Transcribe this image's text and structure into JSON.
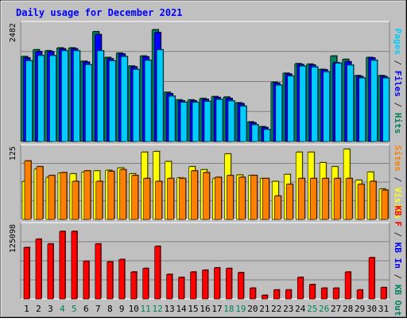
{
  "chart_data": [
    {
      "type": "bar",
      "title": "Daily usage for December 2021",
      "panel": "top",
      "ylabel_parts": [
        {
          "text": "Pages",
          "color": "#00ccff"
        },
        {
          "text": " / ",
          "color": "#333333"
        },
        {
          "text": "Files",
          "color": "#0000ff"
        },
        {
          "text": " / ",
          "color": "#333333"
        },
        {
          "text": "Hits",
          "color": "#00805c"
        }
      ],
      "ymax_label": "2482",
      "ylim": [
        0,
        2482
      ],
      "categories": [
        "1",
        "2",
        "3",
        "4",
        "5",
        "6",
        "7",
        "8",
        "9",
        "10",
        "11",
        "12",
        "13",
        "14",
        "15",
        "16",
        "17",
        "18",
        "19",
        "20",
        "21",
        "22",
        "23",
        "24",
        "25",
        "26",
        "27",
        "28",
        "29",
        "30",
        "31"
      ],
      "weekend_days": [
        "4",
        "5",
        "11",
        "12",
        "18",
        "19",
        "25",
        "26"
      ],
      "series": [
        {
          "name": "Hits",
          "color": "#00805c",
          "values": [
            1780,
            1920,
            1900,
            1960,
            1960,
            1680,
            2300,
            1760,
            1850,
            1580,
            1790,
            2340,
            1030,
            870,
            870,
            900,
            940,
            930,
            810,
            410,
            310,
            1240,
            1430,
            1630,
            1620,
            1510,
            1790,
            1720,
            1380,
            1760,
            1380
          ]
        },
        {
          "name": "Files",
          "color": "#0000ff",
          "values": [
            1750,
            1880,
            1880,
            1940,
            1940,
            1660,
            2240,
            1730,
            1830,
            1560,
            1770,
            2280,
            1000,
            850,
            850,
            880,
            920,
            900,
            790,
            390,
            290,
            1220,
            1410,
            1610,
            1600,
            1500,
            1650,
            1670,
            1360,
            1750,
            1360
          ]
        },
        {
          "name": "Pages",
          "color": "#00ccff",
          "values": [
            1690,
            1800,
            1800,
            1900,
            1900,
            1610,
            1900,
            1690,
            1780,
            1510,
            1700,
            1920,
            950,
            820,
            820,
            840,
            880,
            850,
            740,
            350,
            250,
            1180,
            1370,
            1580,
            1560,
            1460,
            1640,
            1600,
            1330,
            1700,
            1330
          ]
        }
      ]
    },
    {
      "type": "bar",
      "panel": "middle",
      "ylabel_parts": [
        {
          "text": "Sites",
          "color": "#ff8000"
        },
        {
          "text": " / ",
          "color": "#333333"
        },
        {
          "text": "Visits",
          "color": "#ffff00"
        }
      ],
      "ymax_label": "125",
      "ylim": [
        0,
        125
      ],
      "series": [
        {
          "name": "Visits",
          "color": "#ffff00",
          "values": [
            65,
            86,
            72,
            79,
            78,
            81,
            83,
            84,
            88,
            78,
            115,
            116,
            99,
            71,
            90,
            85,
            70,
            112,
            76,
            75,
            70,
            65,
            77,
            115,
            115,
            97,
            90,
            120,
            67,
            81,
            52
          ]
        },
        {
          "name": "Sites",
          "color": "#ff8000",
          "values": [
            100,
            90,
            75,
            80,
            65,
            83,
            65,
            82,
            85,
            75,
            70,
            65,
            70,
            70,
            83,
            80,
            72,
            75,
            72,
            75,
            70,
            40,
            60,
            70,
            70,
            70,
            70,
            70,
            60,
            65,
            50
          ]
        }
      ]
    },
    {
      "type": "bar",
      "panel": "bottom",
      "ylabel_parts": [
        {
          "text": "KB F",
          "color": "#ff0000"
        },
        {
          "text": " / ",
          "color": "#333333"
        },
        {
          "text": "KB In",
          "color": "#0000ff"
        },
        {
          "text": " / ",
          "color": "#333333"
        },
        {
          "text": "KB Out",
          "color": "#00805c"
        }
      ],
      "ymax_label": "125098",
      "ylim": [
        0,
        125098
      ],
      "series": [
        {
          "name": "KB F",
          "color": "#ff0000",
          "values": [
            86000,
            100000,
            92000,
            113000,
            113000,
            63000,
            92000,
            62000,
            66000,
            45000,
            51000,
            88000,
            41000,
            36000,
            45000,
            48000,
            52000,
            51000,
            44000,
            18000,
            6000,
            15000,
            15000,
            36000,
            24000,
            18000,
            18000,
            45000,
            15000,
            69000,
            19000
          ]
        }
      ]
    }
  ]
}
